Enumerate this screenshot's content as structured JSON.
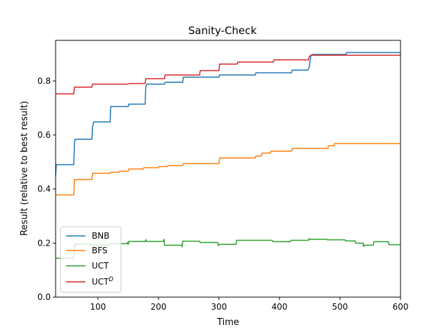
{
  "chart_data": {
    "type": "line",
    "title": "Sanity-Check",
    "xlabel": "Time",
    "ylabel": "Result (relative to best result)",
    "xlim": [
      30,
      600
    ],
    "ylim": [
      0.0,
      0.95
    ],
    "xticks": [
      100,
      200,
      300,
      400,
      500,
      600
    ],
    "yticks": [
      0.0,
      0.2,
      0.4,
      0.6,
      0.8
    ],
    "xtick_labels": [
      "100",
      "200",
      "300",
      "400",
      "500",
      "600"
    ],
    "ytick_labels": [
      "0.0",
      "0.2",
      "0.4",
      "0.6",
      "0.8"
    ],
    "grid": false,
    "legend_position": "bottom-left",
    "series": [
      {
        "name": "BNB",
        "color": "#1f77b4",
        "points": [
          [
            30,
            0.45
          ],
          [
            31,
            0.49
          ],
          [
            60,
            0.49
          ],
          [
            61,
            0.56
          ],
          [
            62,
            0.584
          ],
          [
            90,
            0.584
          ],
          [
            91,
            0.63
          ],
          [
            93,
            0.648
          ],
          [
            120,
            0.648
          ],
          [
            121,
            0.705
          ],
          [
            150,
            0.705
          ],
          [
            151,
            0.714
          ],
          [
            178,
            0.714
          ],
          [
            179,
            0.78
          ],
          [
            181,
            0.788
          ],
          [
            210,
            0.788
          ],
          [
            211,
            0.795
          ],
          [
            240,
            0.795
          ],
          [
            241,
            0.814
          ],
          [
            300,
            0.814
          ],
          [
            301,
            0.822
          ],
          [
            360,
            0.822
          ],
          [
            361,
            0.83
          ],
          [
            420,
            0.83
          ],
          [
            421,
            0.84
          ],
          [
            447,
            0.84
          ],
          [
            449,
            0.85
          ],
          [
            452,
            0.895
          ],
          [
            455,
            0.898
          ],
          [
            510,
            0.898
          ],
          [
            511,
            0.905
          ],
          [
            600,
            0.905
          ]
        ]
      },
      {
        "name": "BFS",
        "color": "#ff7f0e",
        "points": [
          [
            30,
            0.378
          ],
          [
            60,
            0.378
          ],
          [
            61,
            0.435
          ],
          [
            90,
            0.435
          ],
          [
            91,
            0.458
          ],
          [
            120,
            0.458
          ],
          [
            121,
            0.462
          ],
          [
            135,
            0.462
          ],
          [
            136,
            0.466
          ],
          [
            150,
            0.466
          ],
          [
            151,
            0.474
          ],
          [
            175,
            0.474
          ],
          [
            176,
            0.479
          ],
          [
            200,
            0.479
          ],
          [
            201,
            0.483
          ],
          [
            215,
            0.483
          ],
          [
            216,
            0.487
          ],
          [
            240,
            0.487
          ],
          [
            241,
            0.494
          ],
          [
            300,
            0.494
          ],
          [
            301,
            0.515
          ],
          [
            360,
            0.515
          ],
          [
            361,
            0.522
          ],
          [
            370,
            0.522
          ],
          [
            371,
            0.533
          ],
          [
            385,
            0.533
          ],
          [
            386,
            0.54
          ],
          [
            420,
            0.54
          ],
          [
            421,
            0.55
          ],
          [
            480,
            0.55
          ],
          [
            481,
            0.56
          ],
          [
            490,
            0.56
          ],
          [
            491,
            0.568
          ],
          [
            600,
            0.568
          ]
        ]
      },
      {
        "name": "UCT",
        "color": "#2ca02c",
        "points": [
          [
            30,
            0.144
          ],
          [
            60,
            0.144
          ],
          [
            61,
            0.18
          ],
          [
            62,
            0.196
          ],
          [
            88,
            0.196
          ],
          [
            89,
            0.192
          ],
          [
            118,
            0.192
          ],
          [
            119,
            0.198
          ],
          [
            148,
            0.198
          ],
          [
            149,
            0.203
          ],
          [
            150,
            0.195
          ],
          [
            151,
            0.206
          ],
          [
            178,
            0.206
          ],
          [
            179,
            0.213
          ],
          [
            180,
            0.206
          ],
          [
            208,
            0.206
          ],
          [
            209,
            0.214
          ],
          [
            210,
            0.192
          ],
          [
            238,
            0.192
          ],
          [
            239,
            0.186
          ],
          [
            240,
            0.207
          ],
          [
            268,
            0.207
          ],
          [
            269,
            0.202
          ],
          [
            298,
            0.202
          ],
          [
            299,
            0.19
          ],
          [
            300,
            0.195
          ],
          [
            328,
            0.195
          ],
          [
            329,
            0.21
          ],
          [
            388,
            0.21
          ],
          [
            389,
            0.205
          ],
          [
            418,
            0.205
          ],
          [
            419,
            0.21
          ],
          [
            448,
            0.21
          ],
          [
            449,
            0.217
          ],
          [
            450,
            0.214
          ],
          [
            478,
            0.214
          ],
          [
            479,
            0.212
          ],
          [
            508,
            0.212
          ],
          [
            509,
            0.208
          ],
          [
            525,
            0.208
          ],
          [
            526,
            0.2
          ],
          [
            538,
            0.2
          ],
          [
            539,
            0.187
          ],
          [
            540,
            0.192
          ],
          [
            555,
            0.192
          ],
          [
            556,
            0.205
          ],
          [
            580,
            0.205
          ],
          [
            581,
            0.194
          ],
          [
            600,
            0.194
          ]
        ]
      },
      {
        "name": "UCT^D",
        "label_main": "UCT",
        "label_sup": "D",
        "color": "#d62728",
        "points": [
          [
            30,
            0.752
          ],
          [
            60,
            0.752
          ],
          [
            61,
            0.777
          ],
          [
            90,
            0.777
          ],
          [
            91,
            0.788
          ],
          [
            150,
            0.788
          ],
          [
            151,
            0.79
          ],
          [
            178,
            0.79
          ],
          [
            179,
            0.808
          ],
          [
            210,
            0.808
          ],
          [
            211,
            0.822
          ],
          [
            268,
            0.822
          ],
          [
            269,
            0.838
          ],
          [
            300,
            0.838
          ],
          [
            301,
            0.862
          ],
          [
            330,
            0.862
          ],
          [
            331,
            0.87
          ],
          [
            390,
            0.87
          ],
          [
            391,
            0.878
          ],
          [
            448,
            0.878
          ],
          [
            449,
            0.89
          ],
          [
            452,
            0.895
          ],
          [
            600,
            0.895
          ]
        ]
      }
    ]
  }
}
